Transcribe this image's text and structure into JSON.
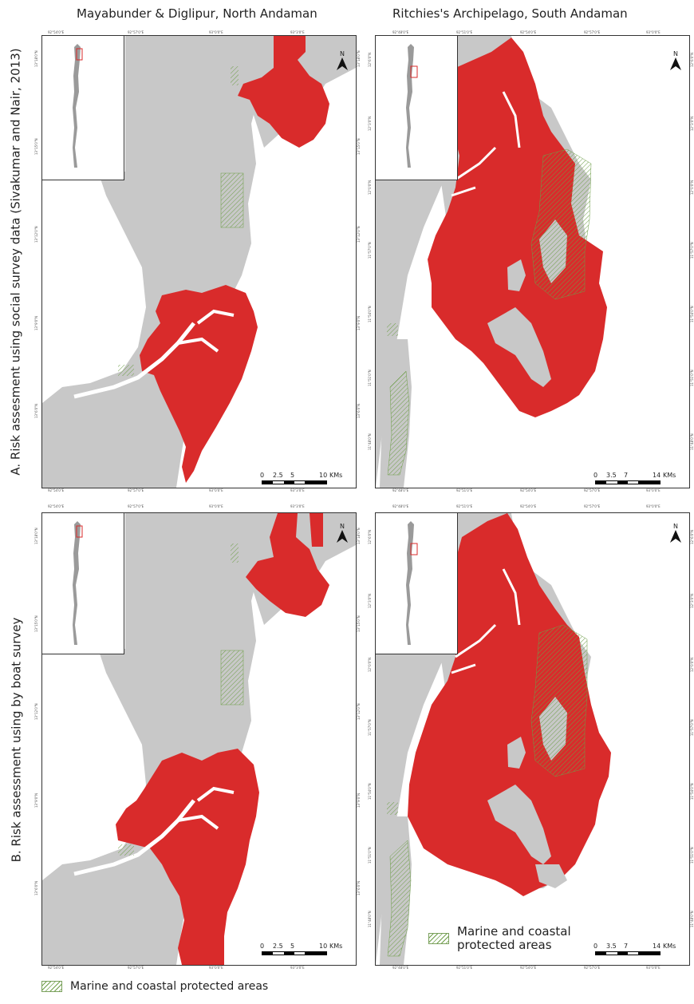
{
  "figure": {
    "column_titles": [
      "Mayabunder & Diglipur, North Andaman",
      "Ritchies's Archipelago, South Andaman"
    ],
    "row_labels": [
      "A. Risk assesment using social survey data (Sivakumar and Nair, 2013)",
      "B. Risk assessment using by boat survey"
    ],
    "colors": {
      "risk_area": "#d92b2b",
      "land": "#c8c8c8",
      "water": "#ffffff",
      "protected_hatch": "#6e9e48"
    },
    "north_label": "N",
    "north_icon": "north-arrow-icon",
    "scalebars": {
      "north": {
        "ticks": [
          "0",
          "2.5",
          "5",
          "10"
        ],
        "unit": "KMs"
      },
      "south": {
        "ticks": [
          "0",
          "3.5",
          "7",
          "14"
        ],
        "unit": "KMs"
      }
    },
    "in_map_legend": {
      "label": "Marine and coastal\nprotected areas"
    },
    "bottom_legend": {
      "label": "Marine and coastal protected areas"
    },
    "graticule": {
      "north_lon": [
        "92°54'0\"E",
        "92°57'0\"E",
        "93°0'0\"E",
        "93°3'0\"E"
      ],
      "south_lon": [
        "92°48'0\"E",
        "92°51'0\"E",
        "92°54'0\"E",
        "92°57'0\"E",
        "93°0'0\"E"
      ],
      "north_lat": [
        "13°18'0\"N",
        "13°15'0\"N",
        "13°12'0\"N",
        "13°9'0\"N",
        "13°6'0\"N"
      ],
      "south_lat": [
        "12°6'0\"N",
        "12°3'0\"N",
        "12°0'0\"N",
        "11°57'0\"N",
        "11°54'0\"N",
        "11°51'0\"N",
        "11°48'0\"N"
      ]
    }
  }
}
